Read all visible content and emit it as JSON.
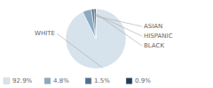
{
  "chart_data": {
    "type": "pie",
    "categories": [
      "WHITE",
      "ASIAN",
      "HISPANIC",
      "BLACK"
    ],
    "values": [
      92.9,
      4.8,
      1.5,
      0.9
    ],
    "value_labels": [
      "92.9%",
      "4.8%",
      "1.5%",
      "0.9%"
    ],
    "colors": [
      "#d6e2ec",
      "#8aaac0",
      "#4e7190",
      "#1f3f5a"
    ],
    "legend": "lower left"
  }
}
